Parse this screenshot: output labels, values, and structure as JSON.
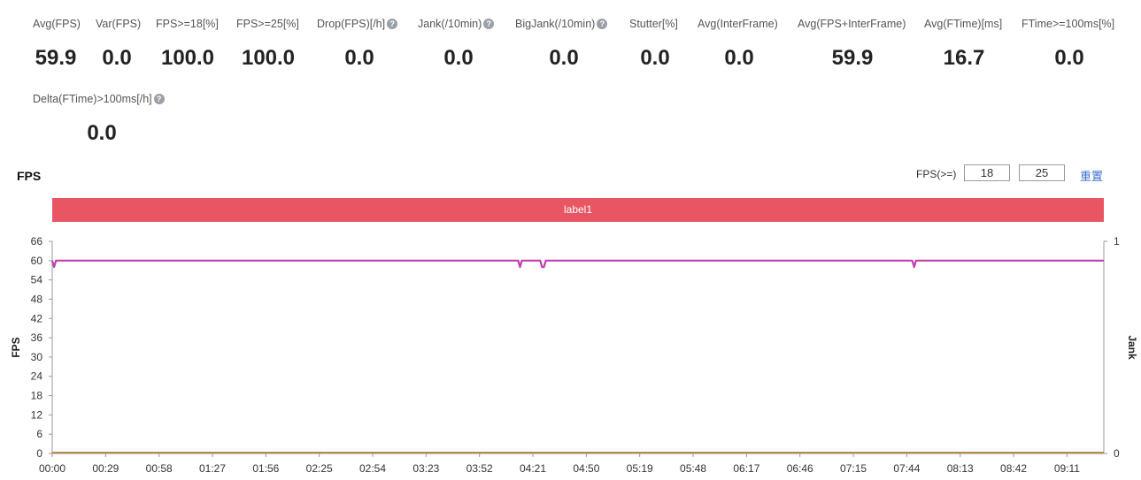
{
  "metrics": [
    {
      "label": "Avg(FPS)",
      "value": "59.9",
      "help": false
    },
    {
      "label": "Var(FPS)",
      "value": "0.0",
      "help": false
    },
    {
      "label": "FPS>=18[%]",
      "value": "100.0",
      "help": false
    },
    {
      "label": "FPS>=25[%]",
      "value": "100.0",
      "help": false
    },
    {
      "label": "Drop(FPS)[/h]",
      "value": "0.0",
      "help": true
    },
    {
      "label": "Jank(/10min)",
      "value": "0.0",
      "help": true
    },
    {
      "label": "BigJank(/10min)",
      "value": "0.0",
      "help": true
    },
    {
      "label": "Stutter[%]",
      "value": "0.0",
      "help": false
    },
    {
      "label": "Avg(InterFrame)",
      "value": "0.0",
      "help": false
    },
    {
      "label": "Avg(FPS+InterFrame)",
      "value": "59.9",
      "help": false
    },
    {
      "label": "Avg(FTime)[ms]",
      "value": "16.7",
      "help": false
    },
    {
      "label": "FTime>=100ms[%]",
      "value": "0.0",
      "help": false
    },
    {
      "label": "Delta(FTime)>100ms[/h]",
      "value": "0.0",
      "help": true
    }
  ],
  "help_glyph": "?",
  "chart_header": {
    "title": "FPS",
    "threshold_label": "FPS(>=)",
    "threshold_low": "18",
    "threshold_high": "25",
    "reset_label": "重置"
  },
  "band_label": "label1",
  "colors": {
    "fps_line": "#c23fae",
    "jank_line": "#b58a4f",
    "band": "#e85663",
    "accent_link": "#3a6fd0"
  },
  "chart_data": {
    "type": "line",
    "title": "FPS",
    "xlabel": "",
    "ylabel": "FPS",
    "y2label": "Jank",
    "ylim": [
      0,
      66
    ],
    "y2lim": [
      0,
      1
    ],
    "yticks": [
      0,
      6,
      12,
      18,
      24,
      30,
      36,
      42,
      48,
      54,
      60,
      66
    ],
    "y2ticks": [
      0,
      1
    ],
    "x_range_seconds": [
      0,
      571
    ],
    "x_ticks": [
      "00:00",
      "00:29",
      "00:58",
      "01:27",
      "01:56",
      "02:25",
      "02:54",
      "03:23",
      "03:52",
      "04:21",
      "04:50",
      "05:19",
      "05:48",
      "06:17",
      "06:46",
      "07:15",
      "07:44",
      "08:13",
      "08:42",
      "09:11"
    ],
    "grid": false,
    "series": [
      {
        "name": "FPS",
        "axis": "left",
        "baseline": 60,
        "dips": [
          {
            "x": "00:01",
            "y": 58
          },
          {
            "x": "04:14",
            "y": 58
          },
          {
            "x": "04:26",
            "y": 58
          },
          {
            "x": "04:27",
            "y": 58
          },
          {
            "x": "07:48",
            "y": 58
          }
        ]
      },
      {
        "name": "Jank",
        "axis": "right",
        "value": 0
      }
    ]
  }
}
